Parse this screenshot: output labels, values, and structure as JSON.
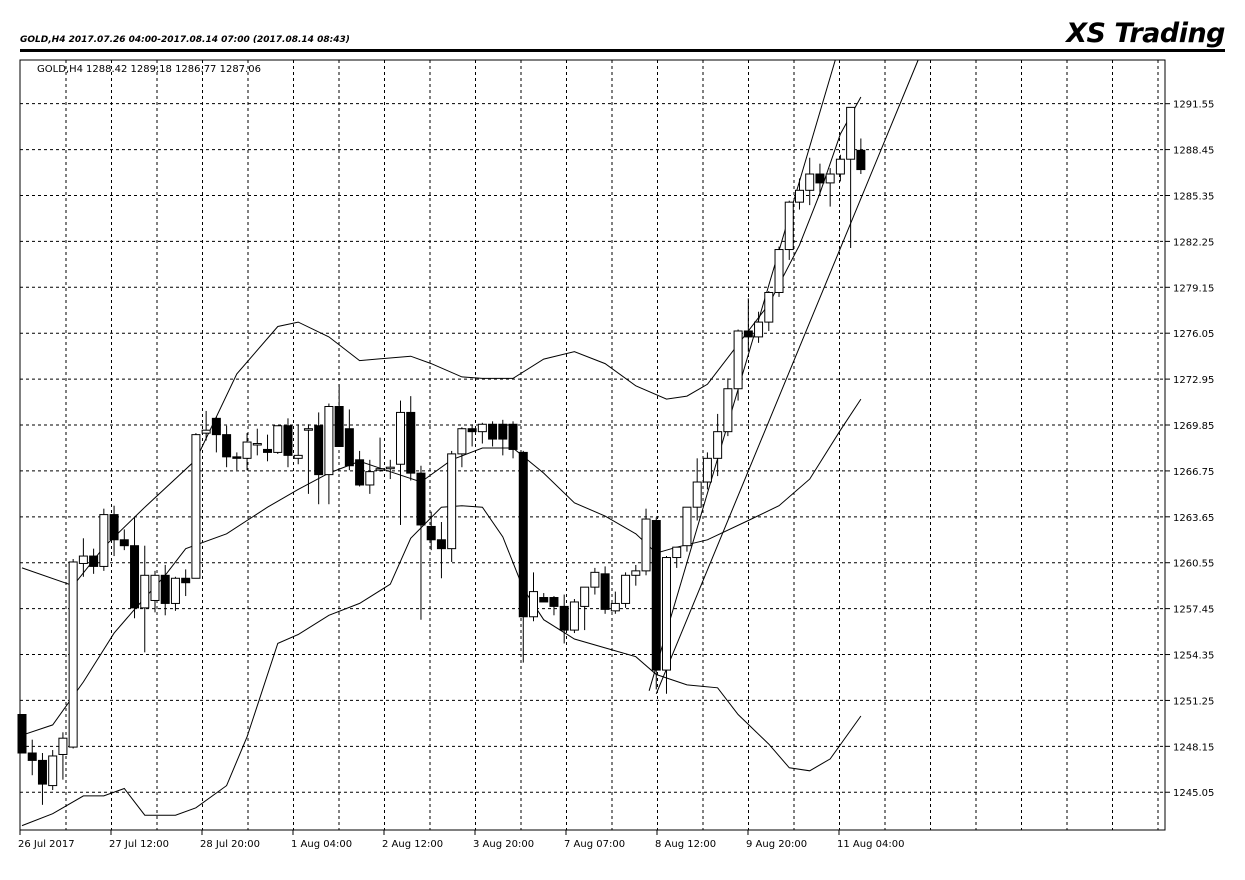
{
  "header": {
    "info": "GOLD,H4  2017.07.26 04:00-2017.08.14 07:00  (2017.08.14 08:43)",
    "brand": "XS Trading"
  },
  "chart_data": {
    "type": "candlestick",
    "symbol_label": "GOLD,H4",
    "ohlc_readout": "1288.42 1289.18 1286.77 1287.06",
    "ylim": [
      1242.5,
      1294.5
    ],
    "y_ticks": [
      1291.55,
      1288.45,
      1285.35,
      1282.25,
      1279.15,
      1276.05,
      1272.95,
      1269.85,
      1266.75,
      1263.65,
      1260.55,
      1257.45,
      1254.35,
      1251.25,
      1248.15,
      1245.05
    ],
    "x_ticks": [
      "26 Jul 2017",
      "27 Jul 12:00",
      "28 Jul 20:00",
      "1 Aug 04:00",
      "2 Aug 12:00",
      "3 Aug 20:00",
      "7 Aug 07:00",
      "8 Aug 12:00",
      "9 Aug 20:00",
      "11 Aug 04:00"
    ],
    "grid": true,
    "candles": [
      [
        1250.3,
        1250.3,
        1247.7,
        1247.7
      ],
      [
        1247.7,
        1248.6,
        1246.2,
        1247.2
      ],
      [
        1247.2,
        1247.7,
        1244.2,
        1245.6
      ],
      [
        1245.5,
        1247.9,
        1245.2,
        1247.5
      ],
      [
        1247.6,
        1249.1,
        1245.9,
        1248.7
      ],
      [
        1248.1,
        1260.8,
        1248.0,
        1260.6
      ],
      [
        1260.5,
        1262.2,
        1259.6,
        1261.0
      ],
      [
        1261.0,
        1261.5,
        1259.8,
        1260.3
      ],
      [
        1260.3,
        1264.2,
        1260.0,
        1263.8
      ],
      [
        1263.8,
        1264.4,
        1261.0,
        1262.1
      ],
      [
        1262.1,
        1262.8,
        1261.4,
        1261.7
      ],
      [
        1261.7,
        1263.6,
        1256.8,
        1257.5
      ],
      [
        1257.5,
        1261.7,
        1254.5,
        1259.7
      ],
      [
        1258.0,
        1260.0,
        1257.2,
        1259.7
      ],
      [
        1259.7,
        1260.4,
        1257.0,
        1257.8
      ],
      [
        1257.8,
        1259.6,
        1257.3,
        1259.5
      ],
      [
        1259.5,
        1260.1,
        1258.3,
        1259.2
      ],
      [
        1259.5,
        1269.3,
        1259.5,
        1269.2
      ],
      [
        1269.3,
        1270.8,
        1268.8,
        1269.5
      ],
      [
        1270.3,
        1270.4,
        1268.0,
        1269.2
      ],
      [
        1269.2,
        1269.8,
        1267.0,
        1267.7
      ],
      [
        1267.7,
        1268.0,
        1266.8,
        1267.6
      ],
      [
        1267.6,
        1269.3,
        1266.8,
        1268.7
      ],
      [
        1268.5,
        1269.6,
        1267.8,
        1268.6
      ],
      [
        1268.2,
        1269.2,
        1267.4,
        1268.0
      ],
      [
        1268.0,
        1269.8,
        1267.9,
        1269.8
      ],
      [
        1269.8,
        1270.3,
        1267.0,
        1267.8
      ],
      [
        1267.6,
        1269.9,
        1267.2,
        1267.8
      ],
      [
        1269.5,
        1269.9,
        1265.2,
        1269.6
      ],
      [
        1269.8,
        1270.7,
        1264.5,
        1266.5
      ],
      [
        1266.5,
        1271.3,
        1264.5,
        1271.1
      ],
      [
        1271.1,
        1272.6,
        1268.7,
        1268.4
      ],
      [
        1269.6,
        1270.9,
        1266.8,
        1267.1
      ],
      [
        1267.5,
        1268.1,
        1265.7,
        1265.8
      ],
      [
        1265.8,
        1267.5,
        1265.2,
        1266.7
      ],
      [
        1266.8,
        1269.0,
        1266.7,
        1266.9
      ],
      [
        1266.9,
        1267.5,
        1266.2,
        1267.0
      ],
      [
        1267.2,
        1271.5,
        1263.1,
        1270.7
      ],
      [
        1270.7,
        1271.8,
        1266.1,
        1266.6
      ],
      [
        1266.6,
        1267.1,
        1256.7,
        1263.1
      ],
      [
        1263.0,
        1264.0,
        1261.4,
        1262.1
      ],
      [
        1262.1,
        1263.3,
        1259.5,
        1261.5
      ],
      [
        1261.5,
        1268.1,
        1260.6,
        1267.9
      ],
      [
        1267.9,
        1269.7,
        1267.0,
        1269.6
      ],
      [
        1269.6,
        1269.9,
        1268.4,
        1269.4
      ],
      [
        1269.4,
        1270.0,
        1268.6,
        1269.9
      ],
      [
        1269.9,
        1270.1,
        1268.4,
        1268.9
      ],
      [
        1269.9,
        1270.2,
        1267.8,
        1268.9
      ],
      [
        1269.9,
        1270.1,
        1267.6,
        1268.2
      ],
      [
        1268.0,
        1268.1,
        1253.8,
        1256.9
      ],
      [
        1256.9,
        1259.9,
        1256.6,
        1258.6
      ],
      [
        1258.2,
        1258.5,
        1257.9,
        1257.9
      ],
      [
        1258.2,
        1258.3,
        1257.0,
        1257.6
      ],
      [
        1257.6,
        1258.4,
        1255.1,
        1256.0
      ],
      [
        1256.0,
        1258.1,
        1255.8,
        1257.9
      ],
      [
        1257.6,
        1258.5,
        1256.0,
        1258.9
      ],
      [
        1258.9,
        1260.2,
        1258.4,
        1259.9
      ],
      [
        1259.8,
        1260.3,
        1257.1,
        1257.4
      ],
      [
        1257.3,
        1258.6,
        1257.1,
        1257.8
      ],
      [
        1257.8,
        1259.9,
        1257.5,
        1259.7
      ],
      [
        1259.7,
        1260.4,
        1259.0,
        1260.0
      ],
      [
        1260.0,
        1264.2,
        1259.7,
        1263.5
      ],
      [
        1263.4,
        1263.6,
        1252.0,
        1253.3
      ],
      [
        1253.3,
        1261.0,
        1251.7,
        1260.9
      ],
      [
        1260.9,
        1261.4,
        1260.2,
        1261.6
      ],
      [
        1261.7,
        1264.3,
        1261.3,
        1264.3
      ],
      [
        1264.3,
        1267.6,
        1263.4,
        1266.0
      ],
      [
        1266.0,
        1268.0,
        1265.5,
        1267.6
      ],
      [
        1267.6,
        1270.6,
        1266.4,
        1269.4
      ],
      [
        1269.4,
        1273.0,
        1269.1,
        1272.3
      ],
      [
        1272.3,
        1276.3,
        1271.5,
        1276.2
      ],
      [
        1276.2,
        1278.4,
        1274.8,
        1275.8
      ],
      [
        1275.8,
        1277.5,
        1275.4,
        1276.8
      ],
      [
        1276.8,
        1278.9,
        1276.2,
        1278.8
      ],
      [
        1278.8,
        1281.9,
        1278.5,
        1281.7
      ],
      [
        1281.7,
        1285.0,
        1281.0,
        1284.9
      ],
      [
        1284.9,
        1286.5,
        1284.4,
        1285.7
      ],
      [
        1285.7,
        1287.9,
        1284.7,
        1286.8
      ],
      [
        1286.8,
        1287.5,
        1285.4,
        1286.2
      ],
      [
        1286.2,
        1287.2,
        1284.6,
        1286.8
      ],
      [
        1286.8,
        1288.1,
        1286.3,
        1287.8
      ],
      [
        1287.8,
        1290.9,
        1281.8,
        1291.3
      ],
      [
        1288.4,
        1289.2,
        1286.8,
        1287.1
      ]
    ],
    "bollinger_upper": [
      [
        0,
        1260.2
      ],
      [
        5,
        1259.0
      ],
      [
        8,
        1261.6
      ],
      [
        12,
        1264.3
      ],
      [
        17,
        1267.5
      ],
      [
        21,
        1273.3
      ],
      [
        25,
        1276.5
      ],
      [
        27,
        1276.8
      ],
      [
        30,
        1275.8
      ],
      [
        33,
        1274.2
      ],
      [
        38,
        1274.5
      ],
      [
        40,
        1274.0
      ],
      [
        43,
        1273.1
      ],
      [
        45,
        1273.0
      ],
      [
        48,
        1273.0
      ],
      [
        51,
        1274.3
      ],
      [
        54,
        1274.8
      ],
      [
        57,
        1274.0
      ],
      [
        60,
        1272.5
      ],
      [
        63,
        1271.6
      ],
      [
        65,
        1271.8
      ],
      [
        67,
        1272.6
      ],
      [
        70,
        1275.3
      ],
      [
        73,
        1278.0
      ],
      [
        76,
        1282.0
      ],
      [
        78,
        1285.5
      ],
      [
        80,
        1289.5
      ],
      [
        82,
        1292.0
      ]
    ],
    "bollinger_middle": [
      [
        0,
        1248.9
      ],
      [
        3,
        1249.6
      ],
      [
        6,
        1252.5
      ],
      [
        9,
        1255.8
      ],
      [
        11,
        1257.4
      ],
      [
        14,
        1259.7
      ],
      [
        16,
        1261.5
      ],
      [
        20,
        1262.5
      ],
      [
        24,
        1264.3
      ],
      [
        27,
        1265.5
      ],
      [
        30,
        1266.6
      ],
      [
        33,
        1267.4
      ],
      [
        36,
        1266.7
      ],
      [
        39,
        1266.0
      ],
      [
        42,
        1267.5
      ],
      [
        45,
        1268.3
      ],
      [
        48,
        1268.3
      ],
      [
        51,
        1266.6
      ],
      [
        54,
        1264.6
      ],
      [
        57,
        1263.7
      ],
      [
        60,
        1262.5
      ],
      [
        62,
        1261.2
      ],
      [
        64,
        1261.6
      ],
      [
        67,
        1262.1
      ],
      [
        71,
        1263.4
      ],
      [
        74,
        1264.4
      ],
      [
        77,
        1266.2
      ],
      [
        80,
        1269.5
      ],
      [
        82,
        1271.6
      ]
    ],
    "bollinger_lower": [
      [
        0,
        1242.8
      ],
      [
        3,
        1243.6
      ],
      [
        6,
        1244.8
      ],
      [
        8,
        1244.8
      ],
      [
        10,
        1245.3
      ],
      [
        12,
        1243.5
      ],
      [
        15,
        1243.5
      ],
      [
        17,
        1244.0
      ],
      [
        20,
        1245.5
      ],
      [
        22,
        1248.8
      ],
      [
        25,
        1255.1
      ],
      [
        27,
        1255.7
      ],
      [
        30,
        1257.0
      ],
      [
        33,
        1257.8
      ],
      [
        36,
        1259.1
      ],
      [
        38,
        1262.2
      ],
      [
        41,
        1264.3
      ],
      [
        43,
        1264.4
      ],
      [
        45,
        1264.3
      ],
      [
        47,
        1262.3
      ],
      [
        49,
        1258.8
      ],
      [
        51,
        1256.7
      ],
      [
        54,
        1255.4
      ],
      [
        57,
        1254.8
      ],
      [
        60,
        1254.2
      ],
      [
        62,
        1253.0
      ],
      [
        65,
        1252.3
      ],
      [
        68,
        1252.1
      ],
      [
        70,
        1250.3
      ],
      [
        73,
        1248.3
      ],
      [
        75,
        1246.7
      ],
      [
        77,
        1246.5
      ],
      [
        79,
        1247.3
      ],
      [
        82,
        1250.2
      ]
    ],
    "trendlines": [
      [
        [
          61.3,
          1251.9
        ],
        [
          79.5,
          1294.5
        ]
      ],
      [
        [
          62.0,
          1251.7
        ],
        [
          87.6,
          1294.5
        ]
      ]
    ]
  }
}
